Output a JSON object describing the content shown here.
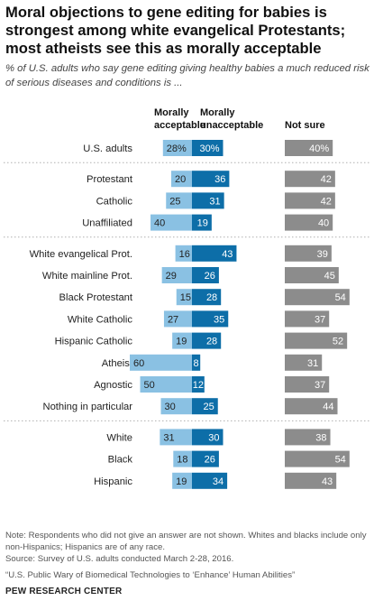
{
  "header": {
    "title": "Moral objections to gene editing for babies is strongest among white evangelical Protestants; most atheists see this as morally acceptable",
    "subtitle": "% of U.S. adults who say gene editing giving healthy babies a much reduced risk of serious diseases and conditions is ..."
  },
  "chart_data": {
    "type": "bar",
    "columns": [
      "Morally acceptable",
      "Morally unacceptable",
      "Not sure"
    ],
    "column_headers": {
      "acceptable_line1": "Morally",
      "acceptable_line2": "acceptable",
      "unacceptable_line1": "Morally",
      "unacceptable_line2": "unacceptable",
      "not_sure": "Not sure"
    },
    "colors": {
      "acceptable": "#8ac1e3",
      "unacceptable": "#0d6ea8",
      "not_sure": "#8c8c8c",
      "text_dark": "#222222",
      "text_light": "#ffffff",
      "divider": "#b0b0b0"
    },
    "groups": [
      {
        "rows": [
          {
            "label": "U.S. adults",
            "acceptable": 28,
            "unacceptable": 30,
            "not_sure": 40,
            "pct": true
          }
        ]
      },
      {
        "rows": [
          {
            "label": "Protestant",
            "acceptable": 20,
            "unacceptable": 36,
            "not_sure": 42
          },
          {
            "label": "Catholic",
            "acceptable": 25,
            "unacceptable": 31,
            "not_sure": 42
          },
          {
            "label": "Unaffiliated",
            "acceptable": 40,
            "unacceptable": 19,
            "not_sure": 40
          }
        ]
      },
      {
        "rows": [
          {
            "label": "White evangelical Prot.",
            "acceptable": 16,
            "unacceptable": 43,
            "not_sure": 39
          },
          {
            "label": "White mainline Prot.",
            "acceptable": 29,
            "unacceptable": 26,
            "not_sure": 45
          },
          {
            "label": "Black Protestant",
            "acceptable": 15,
            "unacceptable": 28,
            "not_sure": 54
          },
          {
            "label": "White Catholic",
            "acceptable": 27,
            "unacceptable": 35,
            "not_sure": 37
          },
          {
            "label": "Hispanic Catholic",
            "acceptable": 19,
            "unacceptable": 28,
            "not_sure": 52
          },
          {
            "label": "Atheist",
            "acceptable": 60,
            "unacceptable": 8,
            "not_sure": 31
          },
          {
            "label": "Agnostic",
            "acceptable": 50,
            "unacceptable": 12,
            "not_sure": 37
          },
          {
            "label": "Nothing in particular",
            "acceptable": 30,
            "unacceptable": 25,
            "not_sure": 44
          }
        ]
      },
      {
        "rows": [
          {
            "label": "White",
            "acceptable": 31,
            "unacceptable": 30,
            "not_sure": 38
          },
          {
            "label": "Black",
            "acceptable": 18,
            "unacceptable": 26,
            "not_sure": 54
          },
          {
            "label": "Hispanic",
            "acceptable": 19,
            "unacceptable": 34,
            "not_sure": 43
          }
        ]
      }
    ]
  },
  "footer": {
    "note": "Note: Respondents who did not give an answer are not shown. Whites and blacks include only non-Hispanics; Hispanics are of any race.",
    "source": "Source: Survey of U.S. adults conducted March 2-28, 2016.",
    "report": "“U.S. Public Wary of Biomedical Technologies to ‘Enhance’ Human Abilities”",
    "brand": "PEW RESEARCH CENTER"
  }
}
